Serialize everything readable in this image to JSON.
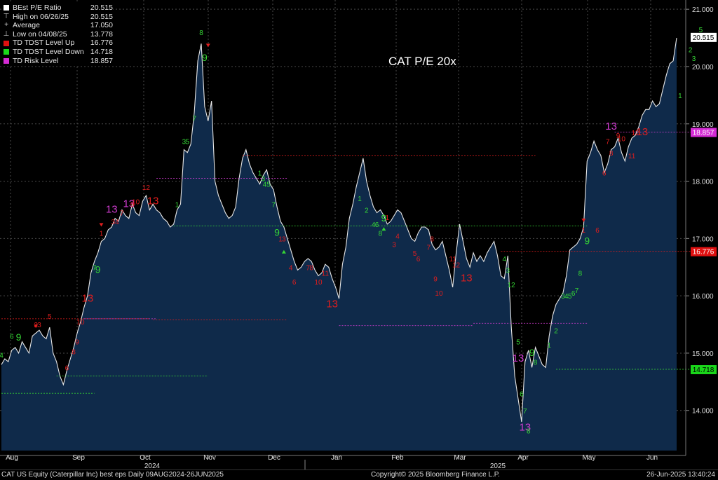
{
  "chart_data": {
    "type": "line",
    "title": "CAT P/E 20x",
    "x_start": "2024-08-09",
    "x_end": "2025-06-26",
    "ylim": [
      13.3,
      21.1
    ],
    "y_ticks": [
      "14.000",
      "15.000",
      "16.000",
      "17.000",
      "18.000",
      "19.000",
      "20.000",
      "21.000"
    ],
    "months": [
      "Aug",
      "Sep",
      "Oct",
      "Nov",
      "Dec",
      "Jan",
      "Feb",
      "Mar",
      "Apr",
      "May",
      "Jun"
    ],
    "years": [
      "2024",
      "2025"
    ],
    "grid": true,
    "legend_position": "top-left",
    "series": [
      {
        "name": "BEst P/E Ratio",
        "color": "#ffffff",
        "values": [
          14.8,
          14.9,
          14.85,
          15.05,
          15.1,
          15.0,
          15.2,
          15.1,
          15.0,
          15.3,
          15.35,
          15.4,
          15.3,
          15.25,
          15.45,
          15.0,
          14.85,
          14.6,
          14.45,
          14.7,
          14.9,
          15.1,
          15.35,
          15.55,
          15.8,
          16.0,
          16.4,
          16.6,
          16.75,
          16.95,
          17.0,
          17.15,
          17.2,
          17.35,
          17.3,
          17.5,
          17.4,
          17.35,
          17.6,
          17.45,
          17.4,
          17.65,
          17.75,
          17.5,
          17.6,
          17.5,
          17.45,
          17.35,
          17.3,
          17.2,
          17.25,
          17.5,
          17.6,
          18.55,
          18.5,
          18.65,
          19.2,
          20.1,
          20.4,
          19.3,
          19.05,
          19.4,
          18.0,
          17.75,
          17.6,
          17.45,
          17.35,
          17.4,
          17.55,
          18.05,
          18.4,
          18.55,
          18.3,
          18.15,
          18.05,
          17.95,
          18.1,
          18.2,
          17.95,
          17.85,
          17.55,
          17.3,
          17.2,
          17.0,
          16.8,
          16.6,
          16.45,
          16.5,
          16.6,
          16.65,
          16.6,
          16.45,
          16.35,
          16.4,
          16.55,
          16.5,
          16.3,
          16.15,
          15.95,
          16.55,
          16.85,
          17.35,
          17.6,
          17.9,
          18.15,
          18.4,
          18.0,
          17.75,
          17.55,
          17.45,
          17.5,
          17.4,
          17.25,
          17.3,
          17.4,
          17.5,
          17.45,
          17.3,
          17.15,
          17.0,
          16.95,
          17.1,
          17.2,
          17.2,
          17.15,
          16.9,
          16.8,
          16.85,
          16.95,
          16.7,
          16.45,
          16.15,
          16.75,
          17.25,
          16.95,
          16.65,
          16.5,
          16.75,
          16.6,
          16.7,
          16.6,
          16.75,
          16.85,
          16.95,
          16.7,
          16.35,
          16.3,
          16.7,
          15.45,
          14.6,
          14.2,
          13.8,
          14.85,
          15.05,
          14.75,
          15.1,
          14.95,
          14.8,
          14.75,
          15.3,
          15.65,
          15.85,
          15.95,
          16.05,
          16.35,
          16.8,
          16.85,
          16.9,
          17.0,
          17.2,
          18.35,
          18.5,
          18.7,
          18.55,
          18.45,
          18.15,
          18.3,
          18.55,
          18.6,
          18.75,
          18.5,
          18.35,
          18.6,
          18.75,
          18.8,
          18.95,
          19.15,
          19.25,
          19.25,
          19.4,
          19.3,
          19.35,
          19.6,
          19.85,
          20.05,
          20.1,
          20.5
        ]
      },
      {
        "name": "TD TDST Level Up",
        "color": "#d11a1a",
        "value": 16.776
      },
      {
        "name": "TD TDST Level Down",
        "color": "#2bd12b",
        "value": 14.718
      },
      {
        "name": "TD Risk Level",
        "color": "#d43cd4",
        "value": 18.857
      }
    ],
    "right_labels": [
      {
        "text": "20.515",
        "value": 20.515,
        "bg": "#ffffff",
        "fg": "#000000"
      },
      {
        "text": "18.857",
        "value": 18.857,
        "bg": "#d42bd4",
        "fg": "#ffffff"
      },
      {
        "text": "16.776",
        "value": 16.776,
        "bg": "#e01010",
        "fg": "#ffffff"
      },
      {
        "text": "14.718",
        "value": 14.718,
        "bg": "#1ad61a",
        "fg": "#000000"
      }
    ],
    "annotations": [
      {
        "t": "4",
        "i": 0,
        "v": 14.92,
        "c": "g"
      },
      {
        "t": "6",
        "i": 3,
        "v": 15.25,
        "c": "g"
      },
      {
        "t": "9",
        "i": 5,
        "v": 15.22,
        "c": "g"
      },
      {
        "t": "2",
        "i": 10,
        "v": 15.45,
        "c": "r"
      },
      {
        "t": "3",
        "i": 11,
        "v": 15.45,
        "c": "r"
      },
      {
        "t": "5",
        "i": 14,
        "v": 15.6,
        "c": "r"
      },
      {
        "t": "6",
        "i": 19,
        "v": 14.7,
        "c": "r"
      },
      {
        "t": "8",
        "i": 21,
        "v": 14.98,
        "c": "r"
      },
      {
        "t": "9",
        "i": 22,
        "v": 15.15,
        "c": "r"
      },
      {
        "t": "10",
        "i": 23,
        "v": 15.5,
        "c": "r"
      },
      {
        "t": "13",
        "i": 25,
        "v": 15.9,
        "c": "r"
      },
      {
        "t": "7",
        "i": 27,
        "v": 16.45,
        "c": "g"
      },
      {
        "t": "9",
        "i": 28,
        "v": 16.4,
        "c": "g"
      },
      {
        "t": "1",
        "i": 29,
        "v": 17.05,
        "c": "r"
      },
      {
        "t": "13",
        "i": 32,
        "v": 17.45,
        "c": "m"
      },
      {
        "t": "34",
        "i": 33,
        "v": 17.25,
        "c": "r"
      },
      {
        "t": "7",
        "i": 35,
        "v": 17.4,
        "c": "r"
      },
      {
        "t": "13",
        "i": 37,
        "v": 17.55,
        "c": "m"
      },
      {
        "t": "9",
        "i": 38,
        "v": 17.55,
        "c": "r"
      },
      {
        "t": "10",
        "i": 39,
        "v": 17.6,
        "c": "r"
      },
      {
        "t": "12",
        "i": 42,
        "v": 17.85,
        "c": "r"
      },
      {
        "t": "13",
        "i": 44,
        "v": 17.6,
        "c": "r"
      },
      {
        "t": "1",
        "i": 51,
        "v": 17.55,
        "c": "g"
      },
      {
        "t": "3",
        "i": 53,
        "v": 18.65,
        "c": "g"
      },
      {
        "t": "5",
        "i": 54,
        "v": 18.65,
        "c": "g"
      },
      {
        "t": "7",
        "i": 56,
        "v": 19.05,
        "c": "g"
      },
      {
        "t": "8",
        "i": 58,
        "v": 20.55,
        "c": "g"
      },
      {
        "t": "9",
        "i": 59,
        "v": 20.1,
        "c": "g"
      },
      {
        "t": "1",
        "i": 75,
        "v": 18.1,
        "c": "g"
      },
      {
        "t": "3",
        "i": 76,
        "v": 18.0,
        "c": "g"
      },
      {
        "t": "45",
        "i": 77,
        "v": 17.9,
        "c": "g"
      },
      {
        "t": "7",
        "i": 79,
        "v": 17.55,
        "c": "g"
      },
      {
        "t": "9",
        "i": 80,
        "v": 17.05,
        "c": "g"
      },
      {
        "t": "1",
        "i": 81,
        "v": 16.95,
        "c": "r"
      },
      {
        "t": "3",
        "i": 82,
        "v": 16.95,
        "c": "r"
      },
      {
        "t": "4",
        "i": 84,
        "v": 16.45,
        "c": "r"
      },
      {
        "t": "6",
        "i": 85,
        "v": 16.2,
        "c": "r"
      },
      {
        "t": "7",
        "i": 89,
        "v": 16.45,
        "c": "r"
      },
      {
        "t": "8",
        "i": 90,
        "v": 16.45,
        "c": "r"
      },
      {
        "t": "10",
        "i": 92,
        "v": 16.2,
        "c": "r"
      },
      {
        "t": "11",
        "i": 94,
        "v": 16.35,
        "c": "r"
      },
      {
        "t": "13",
        "i": 96,
        "v": 15.8,
        "c": "r"
      },
      {
        "t": "1",
        "i": 104,
        "v": 17.65,
        "c": "g"
      },
      {
        "t": "2",
        "i": 106,
        "v": 17.45,
        "c": "g"
      },
      {
        "t": "4",
        "i": 108,
        "v": 17.2,
        "c": "g"
      },
      {
        "t": "6",
        "i": 109,
        "v": 17.2,
        "c": "g"
      },
      {
        "t": "8",
        "i": 110,
        "v": 17.05,
        "c": "g"
      },
      {
        "t": "9",
        "i": 111,
        "v": 17.3,
        "c": "g"
      },
      {
        "t": "1",
        "i": 112,
        "v": 17.32,
        "c": "r"
      },
      {
        "t": "3",
        "i": 114,
        "v": 16.85,
        "c": "r"
      },
      {
        "t": "4",
        "i": 115,
        "v": 17.0,
        "c": "r"
      },
      {
        "t": "5",
        "i": 120,
        "v": 16.7,
        "c": "r"
      },
      {
        "t": "6",
        "i": 121,
        "v": 16.6,
        "c": "r"
      },
      {
        "t": "7",
        "i": 124,
        "v": 16.8,
        "c": "r"
      },
      {
        "t": "8",
        "i": 125,
        "v": 16.95,
        "c": "r"
      },
      {
        "t": "9",
        "i": 126,
        "v": 16.25,
        "c": "r"
      },
      {
        "t": "10",
        "i": 127,
        "v": 16.0,
        "c": "r"
      },
      {
        "t": "11",
        "i": 131,
        "v": 16.6,
        "c": "r"
      },
      {
        "t": "12",
        "i": 132,
        "v": 16.5,
        "c": "r"
      },
      {
        "t": "13",
        "i": 135,
        "v": 16.25,
        "c": "r"
      },
      {
        "t": "4",
        "i": 146,
        "v": 16.6,
        "c": "g"
      },
      {
        "t": "3",
        "i": 147,
        "v": 16.4,
        "c": "g"
      },
      {
        "t": "12",
        "i": 148,
        "v": 16.15,
        "c": "g"
      },
      {
        "t": "5",
        "i": 150,
        "v": 15.15,
        "c": "g"
      },
      {
        "t": "13",
        "i": 150,
        "v": 14.85,
        "c": "m"
      },
      {
        "t": "6",
        "i": 151,
        "v": 14.25,
        "c": "g"
      },
      {
        "t": "7",
        "i": 152,
        "v": 13.95,
        "c": "g"
      },
      {
        "t": "13",
        "i": 152,
        "v": 13.65,
        "c": "m"
      },
      {
        "t": "8",
        "i": 153,
        "v": 13.6,
        "c": "g"
      },
      {
        "t": "9",
        "i": 154,
        "v": 14.95,
        "c": "g"
      },
      {
        "t": "8",
        "i": 155,
        "v": 14.8,
        "c": "g"
      },
      {
        "t": "1",
        "i": 159,
        "v": 15.1,
        "c": "g"
      },
      {
        "t": "2",
        "i": 161,
        "v": 15.35,
        "c": "g"
      },
      {
        "t": "3",
        "i": 163,
        "v": 15.95,
        "c": "g"
      },
      {
        "t": "4",
        "i": 164,
        "v": 15.95,
        "c": "g"
      },
      {
        "t": "5",
        "i": 165,
        "v": 15.95,
        "c": "g"
      },
      {
        "t": "6",
        "i": 166,
        "v": 16.0,
        "c": "g"
      },
      {
        "t": "7",
        "i": 167,
        "v": 16.05,
        "c": "g"
      },
      {
        "t": "8",
        "i": 168,
        "v": 16.35,
        "c": "g"
      },
      {
        "t": "9",
        "i": 170,
        "v": 16.9,
        "c": "g"
      },
      {
        "t": "1",
        "i": 169,
        "v": 17.1,
        "c": "r"
      },
      {
        "t": "6",
        "i": 173,
        "v": 17.1,
        "c": "r"
      },
      {
        "t": "6",
        "i": 175,
        "v": 18.1,
        "c": "r"
      },
      {
        "t": "7",
        "i": 176,
        "v": 18.65,
        "c": "r"
      },
      {
        "t": "8",
        "i": 177,
        "v": 18.45,
        "c": "r"
      },
      {
        "t": "13",
        "i": 177,
        "v": 18.9,
        "c": "m"
      },
      {
        "t": "9",
        "i": 179,
        "v": 18.75,
        "c": "r"
      },
      {
        "t": "10",
        "i": 180,
        "v": 18.7,
        "c": "r"
      },
      {
        "t": "11",
        "i": 183,
        "v": 18.4,
        "c": "r"
      },
      {
        "t": "12",
        "i": 184,
        "v": 18.8,
        "c": "r"
      },
      {
        "t": "13",
        "i": 186,
        "v": 18.8,
        "c": "r"
      },
      {
        "t": "1",
        "i": 197,
        "v": 19.45,
        "c": "g"
      },
      {
        "t": "2",
        "i": 200,
        "v": 20.25,
        "c": "g"
      },
      {
        "t": "3",
        "i": 201,
        "v": 20.1,
        "c": "g"
      },
      {
        "t": "5",
        "i": 203,
        "v": 20.6,
        "c": "g"
      }
    ],
    "arrows": [
      {
        "i": 10,
        "v": 15.45,
        "c": "r",
        "dir": "down"
      },
      {
        "i": 29,
        "v": 17.22,
        "c": "r",
        "dir": "down"
      },
      {
        "i": 60,
        "v": 20.35,
        "c": "r",
        "dir": "down"
      },
      {
        "i": 82,
        "v": 16.75,
        "c": "g",
        "dir": "up"
      },
      {
        "i": 111,
        "v": 17.15,
        "c": "g",
        "dir": "up"
      },
      {
        "i": 169,
        "v": 17.3,
        "c": "r",
        "dir": "down"
      }
    ],
    "level_lines": [
      {
        "c": "g",
        "v": 14.3,
        "i0": 0,
        "i1": 27
      },
      {
        "c": "r",
        "v": 15.6,
        "i0": 0,
        "i1": 43
      },
      {
        "c": "m",
        "v": 15.6,
        "i0": 24,
        "i1": 45
      },
      {
        "c": "g",
        "v": 14.6,
        "i0": 16,
        "i1": 60
      },
      {
        "c": "r",
        "v": 15.58,
        "i0": 44,
        "i1": 83
      },
      {
        "c": "m",
        "v": 18.05,
        "i0": 45,
        "i1": 83
      },
      {
        "c": "g",
        "v": 17.22,
        "i0": 50,
        "i1": 170
      },
      {
        "c": "r",
        "v": 18.45,
        "i0": 70,
        "i1": 155
      },
      {
        "c": "m",
        "v": 15.48,
        "i0": 98,
        "i1": 137
      },
      {
        "c": "m",
        "v": 15.52,
        "i0": 137,
        "i1": 170
      },
      {
        "c": "r",
        "v": 16.776,
        "i0": 145,
        "i1": 204
      },
      {
        "c": "g",
        "v": 14.718,
        "i0": 161,
        "i1": 204
      },
      {
        "c": "m",
        "v": 18.857,
        "i0": 178,
        "i1": 204
      }
    ]
  },
  "legend": [
    {
      "symbol": "square",
      "color": "#ffffff",
      "label": "BEst P/E Ratio",
      "value": "20.515"
    },
    {
      "symbol": "⊤",
      "color": "#cccccc",
      "label": "High on 06/26/25",
      "value": "20.515"
    },
    {
      "symbol": "+",
      "color": "#cccccc",
      "label": "Average",
      "value": "17.050"
    },
    {
      "symbol": "⊥",
      "color": "#cccccc",
      "label": "Low on 04/08/25",
      "value": "13.778"
    },
    {
      "symbol": "square",
      "color": "#e01010",
      "label": "TD TDST Level Up",
      "value": "16.776"
    },
    {
      "symbol": "square",
      "color": "#1ad61a",
      "label": "TD TDST Level Down",
      "value": "14.718"
    },
    {
      "symbol": "square",
      "color": "#d42bd4",
      "label": "TD Risk Level",
      "value": "18.857"
    }
  ],
  "footer": {
    "left": "CAT US Equity (Caterpillar Inc) best eps  Daily 09AUG2024-26JUN2025",
    "center": "Copyright© 2025 Bloomberg Finance L.P.",
    "right": "26-Jun-2025 13:40:24"
  },
  "colors": {
    "background": "#000000",
    "area": "#0f2a4a",
    "line": "#e8e8e8",
    "grid": "#5a5a5a"
  }
}
